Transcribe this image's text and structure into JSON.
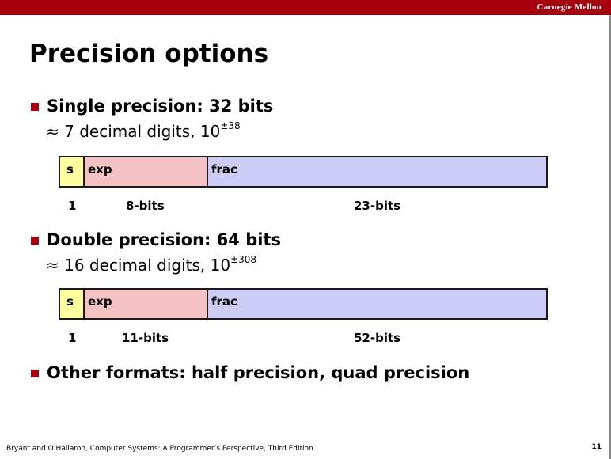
{
  "header": {
    "brand": "Carnegie Mellon"
  },
  "title": "Precision options",
  "bullets": [
    {
      "text": "Single precision: 32 bits",
      "sub_prefix": "≈ 7 decimal digits, 10",
      "sub_sup": "±38"
    },
    {
      "text": "Double precision: 64 bits",
      "sub_prefix": "≈ 16 decimal digits, 10",
      "sub_sup": "±308"
    },
    {
      "text": "Other formats: half precision, quad precision"
    }
  ],
  "single_format": {
    "fields": [
      "s",
      "exp",
      "frac"
    ],
    "bits": [
      "1",
      "8-bits",
      "23-bits"
    ]
  },
  "double_format": {
    "fields": [
      "s",
      "exp",
      "frac"
    ],
    "bits": [
      "1",
      "11-bits",
      "52-bits"
    ]
  },
  "footer": {
    "citation": "Bryant and O’Hallaron, Computer Systems: A Programmer’s Perspective, Third Edition",
    "page": "11"
  },
  "colors": {
    "accent": "#a6000f",
    "sign": "#ffffa0",
    "exponent": "#f4c2c4",
    "fraction": "#ccccf4"
  }
}
